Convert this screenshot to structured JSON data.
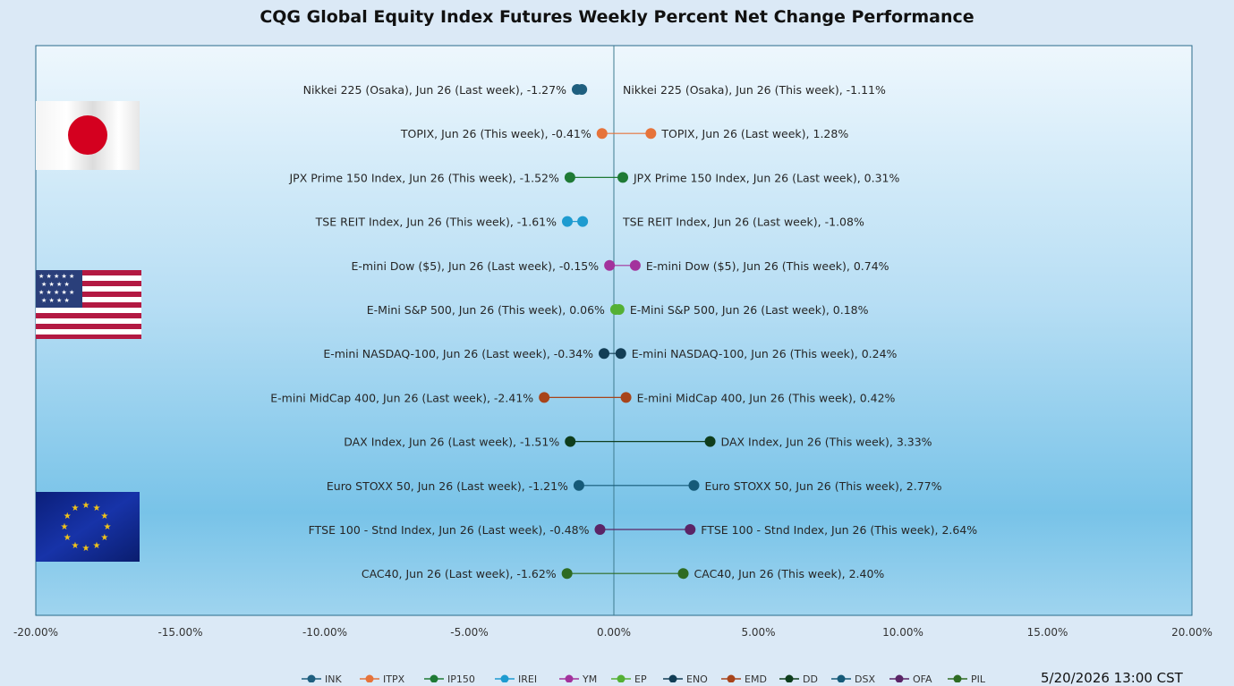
{
  "title": "CQG Global Equity Index Futures Weekly Percent Net Change Performance",
  "timestamp": "5/20/2026 13:00 CST",
  "flags": [
    {
      "country": "Japan",
      "icon": "japan-flag-icon"
    },
    {
      "country": "United States",
      "icon": "usa-flag-icon"
    },
    {
      "country": "European Union",
      "icon": "eu-flag-icon"
    }
  ],
  "chart_data": {
    "type": "dumbbell",
    "xlim": [
      -20,
      20
    ],
    "x_ticks": [
      "-20.00%",
      "-15.00%",
      "-10.00%",
      "-5.00%",
      "0.00%",
      "5.00%",
      "10.00%",
      "15.00%",
      "20.00%"
    ],
    "x_tick_values": [
      -20,
      -15,
      -10,
      -5,
      0,
      5,
      10,
      15,
      20
    ],
    "grid": false,
    "legend_position": "bottom",
    "rows": [
      {
        "symbol": "JNK",
        "color": "#1f5f7f",
        "left_value": -1.27,
        "right_value": -1.11,
        "left_label": "Nikkei 225 (Osaka), Jun 26 (Last week), -1.27%",
        "right_label": "Nikkei 225 (Osaka), Jun 26 (This week), -1.11%"
      },
      {
        "symbol": "JTPX",
        "color": "#e6733a",
        "left_value": -0.41,
        "right_value": 1.28,
        "left_label": "TOPIX, Jun 26 (This week), -0.41%",
        "right_label": "TOPIX, Jun 26 (Last week), 1.28%"
      },
      {
        "symbol": "JP150",
        "color": "#1f7a35",
        "left_value": -1.52,
        "right_value": 0.31,
        "left_label": "JPX Prime 150 Index, Jun 26 (This week), -1.52%",
        "right_label": "JPX Prime 150 Index, Jun 26 (Last week), 0.31%"
      },
      {
        "symbol": "JREI",
        "color": "#1e9bd0",
        "left_value": -1.61,
        "right_value": -1.08,
        "left_label": "TSE REIT Index, Jun 26 (This week), -1.61%",
        "right_label": "TSE REIT Index, Jun 26 (Last week), -1.08%"
      },
      {
        "symbol": "YM",
        "color": "#a3329c",
        "left_value": -0.15,
        "right_value": 0.74,
        "left_label": "E-mini Dow ($5), Jun 26 (Last week), -0.15%",
        "right_label": "E-mini Dow ($5), Jun 26 (This week), 0.74%"
      },
      {
        "symbol": "EP",
        "color": "#54b034",
        "left_value": 0.06,
        "right_value": 0.18,
        "left_label": "E-Mini S&P 500, Jun 26 (This week), 0.06%",
        "right_label": "E-Mini S&P 500, Jun 26 (Last week), 0.18%"
      },
      {
        "symbol": "ENQ",
        "color": "#123d55",
        "left_value": -0.34,
        "right_value": 0.24,
        "left_label": "E-mini NASDAQ-100, Jun 26 (Last week), -0.34%",
        "right_label": "E-mini NASDAQ-100, Jun 26 (This week), 0.24%"
      },
      {
        "symbol": "EMD",
        "color": "#a8441a",
        "left_value": -2.41,
        "right_value": 0.42,
        "left_label": "E-mini MidCap 400, Jun 26 (Last week), -2.41%",
        "right_label": "E-mini MidCap 400, Jun 26 (This week), 0.42%"
      },
      {
        "symbol": "DD",
        "color": "#0f3d1c",
        "left_value": -1.51,
        "right_value": 3.33,
        "left_label": "DAX Index, Jun 26 (Last week), -1.51%",
        "right_label": "DAX Index, Jun 26 (This week), 3.33%"
      },
      {
        "symbol": "DSX",
        "color": "#165a78",
        "left_value": -1.21,
        "right_value": 2.77,
        "left_label": "Euro STOXX 50, Jun 26 (Last week), -1.21%",
        "right_label": "Euro STOXX 50, Jun 26 (This week), 2.77%"
      },
      {
        "symbol": "QFA",
        "color": "#5b2466",
        "left_value": -0.48,
        "right_value": 2.64,
        "left_label": "FTSE 100 - Stnd Index, Jun 26 (Last week), -0.48%",
        "right_label": "FTSE 100 - Stnd Index, Jun 26 (This week), 2.64%"
      },
      {
        "symbol": "PIL",
        "color": "#2e6b22",
        "left_value": -1.62,
        "right_value": 2.4,
        "left_label": "CAC40, Jun 26 (Last week), -1.62%",
        "right_label": "CAC40, Jun 26 (This week), 2.40%"
      }
    ]
  }
}
